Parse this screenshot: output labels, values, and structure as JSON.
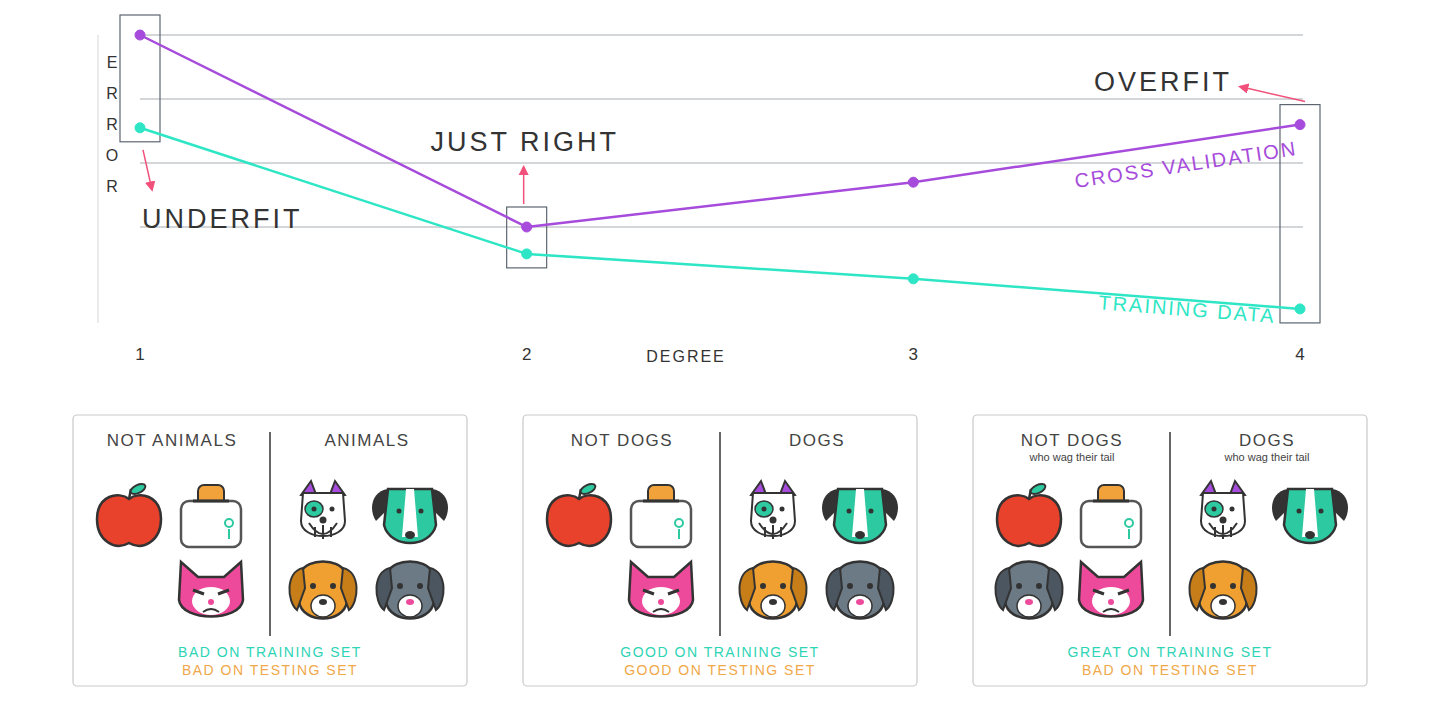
{
  "chart_data": {
    "type": "line",
    "x_label": "DEGREE",
    "y_label": "ERROR",
    "x": [
      1,
      2,
      3,
      4
    ],
    "xlim": [
      1,
      4
    ],
    "xticks": [
      1,
      2,
      3,
      4
    ],
    "ylim": [
      -0.5,
      4
    ],
    "yticks": [
      1,
      2,
      3,
      4
    ],
    "grid": true,
    "tick_labels": "x",
    "series": [
      {
        "name": "CROSS VALIDATION",
        "color": "#a64bdb",
        "marker": "circle",
        "values": [
          4.0,
          1.0,
          1.7,
          2.6
        ]
      },
      {
        "name": "TRAINING DATA",
        "color": "#2ee6c5",
        "marker": "circle",
        "values": [
          2.55,
          0.58,
          0.19,
          -0.28
        ]
      }
    ],
    "annotations": [
      {
        "text": "UNDERFIT",
        "x": 1
      },
      {
        "text": "JUST RIGHT",
        "x": 2
      },
      {
        "text": "OVERFIT",
        "x": 4
      }
    ]
  },
  "panels": [
    {
      "left_title": "NOT ANIMALS",
      "right_title": "ANIMALS",
      "training_result": "BAD ON TRAINING SET",
      "testing_result": "BAD ON TESTING SET"
    },
    {
      "left_title": "NOT DOGS",
      "right_title": "DOGS",
      "training_result": "GOOD ON TRAINING SET",
      "testing_result": "GOOD ON TESTING SET"
    },
    {
      "left_title": "NOT DOGS",
      "left_subtitle": "who wag their tail",
      "right_title": "DOGS",
      "right_subtitle": "who wag their tail",
      "training_result": "GREAT ON TRAINING SET",
      "testing_result": "BAD ON TESTING SET"
    }
  ]
}
